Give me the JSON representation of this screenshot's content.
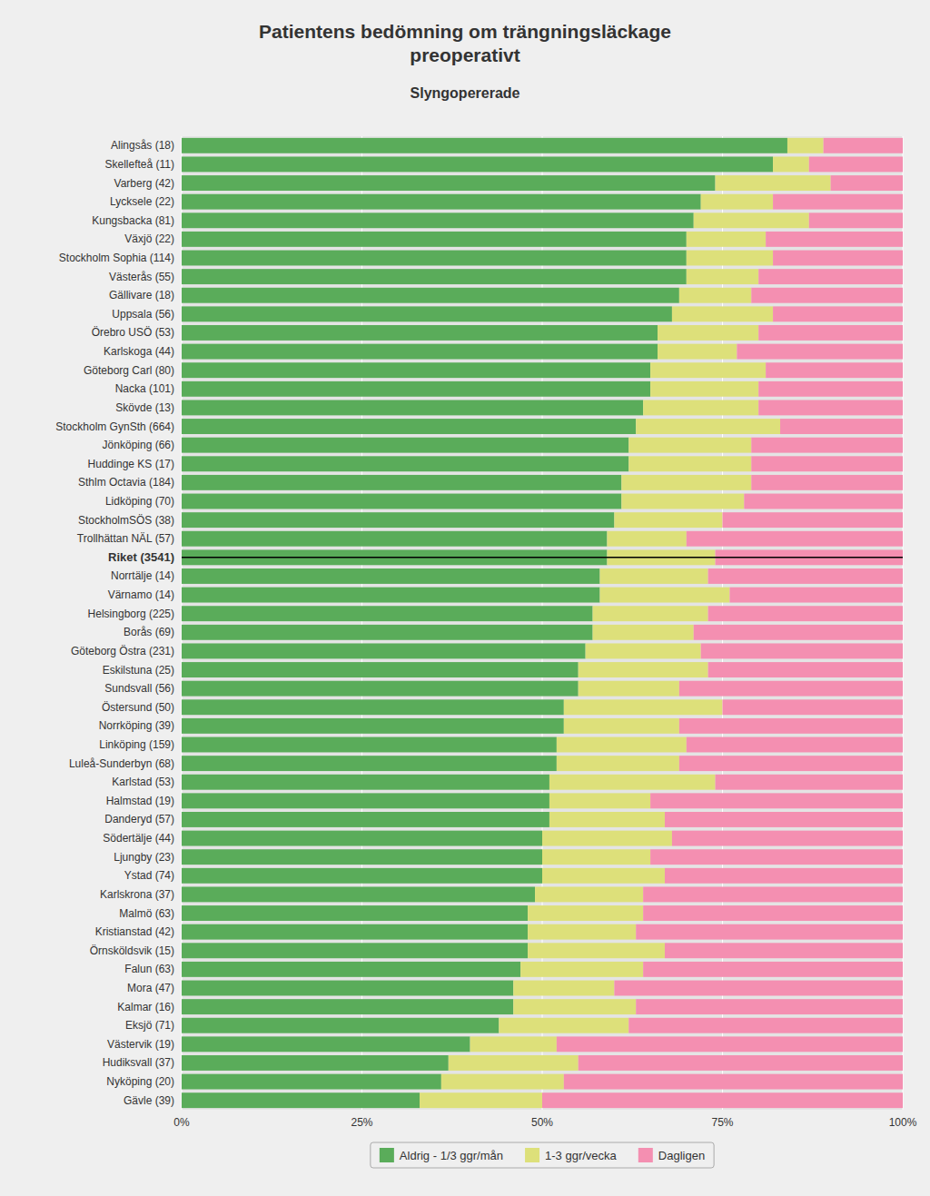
{
  "chart_data": {
    "type": "bar",
    "orientation": "horizontal",
    "stacked": true,
    "title": "Patientens bedömning om trängningsläckage\npreoperativt",
    "subtitle": "Slyngopererade",
    "categories": [
      "Alingsås (18)",
      "Skellefteå (11)",
      "Varberg (42)",
      "Lycksele (22)",
      "Kungsbacka (81)",
      "Växjö (22)",
      "Stockholm Sophia (114)",
      "Västerås (55)",
      "Gällivare (18)",
      "Uppsala (56)",
      "Örebro USÖ (53)",
      "Karlskoga (44)",
      "Göteborg Carl (80)",
      "Nacka (101)",
      "Skövde (13)",
      "Stockholm GynSth (664)",
      "Jönköping (66)",
      "Huddinge KS (17)",
      "Sthlm Octavia (184)",
      "Lidköping (70)",
      "StockholmSÖS (38)",
      "Trollhättan NÄL (57)",
      "Riket (3541)",
      "Norrtälje (14)",
      "Värnamo (14)",
      "Helsingborg (225)",
      "Borås (69)",
      "Göteborg Östra (231)",
      "Eskilstuna (25)",
      "Sundsvall (56)",
      "Östersund (50)",
      "Norrköping (39)",
      "Linköping (159)",
      "Luleå-Sunderbyn (68)",
      "Karlstad (53)",
      "Halmstad (19)",
      "Danderyd (57)",
      "Södertälje (44)",
      "Ljungby (23)",
      "Ystad (74)",
      "Karlskrona (37)",
      "Malmö (63)",
      "Kristianstad (42)",
      "Örnsköldsvik (15)",
      "Falun (63)",
      "Mora (47)",
      "Kalmar (16)",
      "Eksjö (71)",
      "Västervik (19)",
      "Hudiksvall (37)",
      "Nyköping (20)",
      "Gävle (39)"
    ],
    "series": [
      {
        "name": "Aldrig - 1/3 ggr/mån",
        "color": "#5aac5a",
        "values": [
          84,
          82,
          74,
          72,
          71,
          70,
          70,
          70,
          69,
          68,
          66,
          66,
          65,
          65,
          64,
          63,
          62,
          62,
          61,
          61,
          60,
          59,
          59,
          58,
          58,
          57,
          57,
          56,
          55,
          55,
          53,
          53,
          52,
          52,
          51,
          51,
          51,
          50,
          50,
          50,
          49,
          48,
          48,
          48,
          47,
          46,
          46,
          44,
          40,
          37,
          36,
          33
        ]
      },
      {
        "name": "1-3 ggr/vecka",
        "color": "#dde07a",
        "values": [
          5,
          5,
          16,
          10,
          16,
          11,
          12,
          10,
          10,
          14,
          14,
          11,
          16,
          15,
          16,
          20,
          17,
          17,
          18,
          17,
          15,
          11,
          15,
          15,
          18,
          16,
          14,
          16,
          18,
          14,
          22,
          16,
          18,
          17,
          23,
          14,
          16,
          18,
          15,
          17,
          15,
          16,
          15,
          19,
          17,
          14,
          17,
          18,
          12,
          18,
          17,
          17
        ]
      },
      {
        "name": "Dagligen",
        "color": "#f48fb1",
        "values": [
          11,
          13,
          10,
          18,
          13,
          19,
          18,
          20,
          21,
          18,
          20,
          23,
          19,
          20,
          20,
          17,
          21,
          21,
          21,
          22,
          25,
          30,
          26,
          27,
          24,
          27,
          29,
          28,
          27,
          31,
          25,
          31,
          30,
          31,
          26,
          35,
          33,
          32,
          35,
          33,
          36,
          36,
          37,
          33,
          36,
          40,
          37,
          38,
          48,
          45,
          47,
          50
        ]
      }
    ],
    "highlight": 22,
    "xlim": [
      0,
      100
    ],
    "xticks": [
      {
        "value": 0,
        "label": "0%"
      },
      {
        "value": 25,
        "label": "25%"
      },
      {
        "value": 50,
        "label": "50%"
      },
      {
        "value": 75,
        "label": "75%"
      },
      {
        "value": 100,
        "label": "100%"
      }
    ],
    "grid": true,
    "legend": "bottom"
  }
}
